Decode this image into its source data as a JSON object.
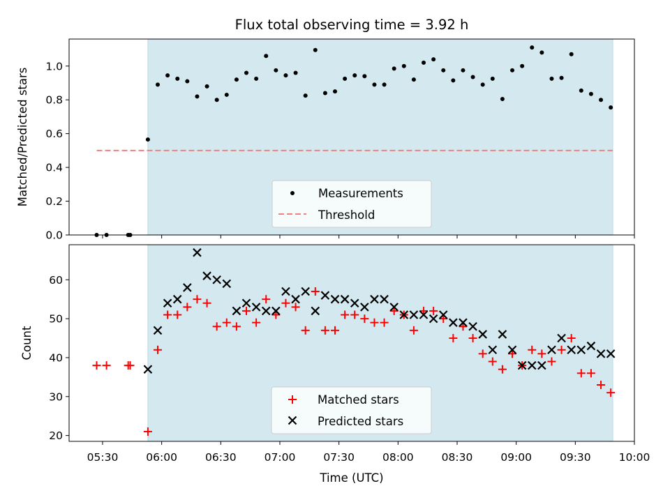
{
  "title": "Flux total observing time = 3.92 h",
  "colors": {
    "shade": "#d3e9ef",
    "shade_edge": "#b8dbe5",
    "measurement": "#000000",
    "threshold": "#f08080",
    "matched": "#ff0000",
    "predicted": "#000000"
  },
  "chart_data": [
    {
      "type": "scatter",
      "xlabel": "",
      "ylabel": "Matched/Predicted stars",
      "ylim": [
        0,
        1.16
      ],
      "y_ticks": [
        "0.0",
        "0.2",
        "0.4",
        "0.6",
        "0.8",
        "1.0"
      ],
      "shaded_interval": [
        "05:53",
        "09:49"
      ],
      "legend": {
        "placement": "lower-center",
        "entries": [
          "Measurements",
          "Threshold"
        ]
      },
      "series": [
        {
          "name": "Measurements",
          "marker": "dot",
          "x": [
            "05:27",
            "05:32",
            "05:43",
            "05:44",
            "05:53",
            "05:58",
            "06:03",
            "06:08",
            "06:13",
            "06:18",
            "06:23",
            "06:28",
            "06:33",
            "06:38",
            "06:43",
            "06:48",
            "06:53",
            "06:58",
            "07:03",
            "07:08",
            "07:13",
            "07:18",
            "07:23",
            "07:28",
            "07:33",
            "07:38",
            "07:43",
            "07:48",
            "07:53",
            "07:58",
            "08:03",
            "08:08",
            "08:13",
            "08:18",
            "08:23",
            "08:28",
            "08:33",
            "08:38",
            "08:43",
            "08:48",
            "08:53",
            "08:58",
            "09:03",
            "09:08",
            "09:13",
            "09:18",
            "09:23",
            "09:28",
            "09:33",
            "09:38",
            "09:43",
            "09:48"
          ],
          "y": [
            0.0,
            0.0,
            0.0,
            0.0,
            0.565,
            0.89,
            0.945,
            0.925,
            0.91,
            0.82,
            0.88,
            0.8,
            0.83,
            0.92,
            0.96,
            0.925,
            1.06,
            0.975,
            0.945,
            0.96,
            0.825,
            1.095,
            0.84,
            0.85,
            0.925,
            0.945,
            0.94,
            0.89,
            0.89,
            0.985,
            1.0,
            0.92,
            1.02,
            1.04,
            0.975,
            0.915,
            0.975,
            0.935,
            0.89,
            0.925,
            0.805,
            0.975,
            1.0,
            1.11,
            1.08,
            0.925,
            0.93,
            1.07,
            0.855,
            0.835,
            0.8,
            0.755
          ]
        },
        {
          "name": "Threshold",
          "marker": "dashed-line",
          "x": [
            "05:27",
            "09:49"
          ],
          "y": [
            0.5,
            0.5
          ]
        }
      ]
    },
    {
      "type": "scatter",
      "xlabel": "Time (UTC)",
      "ylabel": "Count",
      "ylim": [
        18.5,
        69
      ],
      "y_ticks": [
        "20",
        "30",
        "40",
        "50",
        "60"
      ],
      "x_ticks": [
        "05:30",
        "06:00",
        "06:30",
        "07:00",
        "07:30",
        "08:00",
        "08:30",
        "09:00",
        "09:30",
        "10:00"
      ],
      "xlim": [
        "05:13",
        "10:00"
      ],
      "shaded_interval": [
        "05:53",
        "09:49"
      ],
      "legend": {
        "placement": "lower-center",
        "entries": [
          "Matched stars",
          "Predicted stars"
        ]
      },
      "series": [
        {
          "name": "Matched stars",
          "marker": "plus",
          "x": [
            "05:27",
            "05:32",
            "05:43",
            "05:44",
            "05:53",
            "05:58",
            "06:03",
            "06:08",
            "06:13",
            "06:18",
            "06:23",
            "06:28",
            "06:33",
            "06:38",
            "06:43",
            "06:48",
            "06:53",
            "06:58",
            "07:03",
            "07:08",
            "07:13",
            "07:18",
            "07:23",
            "07:28",
            "07:33",
            "07:38",
            "07:43",
            "07:48",
            "07:53",
            "07:58",
            "08:03",
            "08:08",
            "08:13",
            "08:18",
            "08:23",
            "08:28",
            "08:33",
            "08:38",
            "08:43",
            "08:48",
            "08:53",
            "08:58",
            "09:03",
            "09:08",
            "09:13",
            "09:18",
            "09:23",
            "09:28",
            "09:33",
            "09:38",
            "09:43",
            "09:48"
          ],
          "y": [
            38,
            38,
            38,
            38,
            21,
            42,
            51,
            51,
            53,
            55,
            54,
            48,
            49,
            48,
            52,
            49,
            55,
            51,
            54,
            53,
            47,
            57,
            47,
            47,
            51,
            51,
            50,
            49,
            49,
            52,
            51,
            47,
            52,
            52,
            50,
            45,
            48,
            45,
            41,
            39,
            37,
            41,
            38,
            42,
            41,
            39,
            42,
            45,
            36,
            36,
            33,
            31
          ]
        },
        {
          "name": "Predicted stars",
          "marker": "x",
          "x": [
            "05:53",
            "05:58",
            "06:03",
            "06:08",
            "06:13",
            "06:18",
            "06:23",
            "06:28",
            "06:33",
            "06:38",
            "06:43",
            "06:48",
            "06:53",
            "06:58",
            "07:03",
            "07:08",
            "07:13",
            "07:18",
            "07:23",
            "07:28",
            "07:33",
            "07:38",
            "07:43",
            "07:48",
            "07:53",
            "07:58",
            "08:03",
            "08:08",
            "08:13",
            "08:18",
            "08:23",
            "08:28",
            "08:33",
            "08:38",
            "08:43",
            "08:48",
            "08:53",
            "08:58",
            "09:03",
            "09:08",
            "09:13",
            "09:18",
            "09:23",
            "09:28",
            "09:33",
            "09:38",
            "09:43",
            "09:48"
          ],
          "y": [
            37,
            47,
            54,
            55,
            58,
            67,
            61,
            60,
            59,
            52,
            54,
            53,
            52,
            52,
            57,
            55,
            57,
            52,
            56,
            55,
            55,
            54,
            53,
            55,
            55,
            53,
            51,
            51,
            51,
            50,
            51,
            49,
            49,
            48,
            46,
            42,
            46,
            42,
            38,
            38,
            38,
            42,
            45,
            42,
            42,
            43,
            41,
            41
          ]
        }
      ]
    }
  ]
}
